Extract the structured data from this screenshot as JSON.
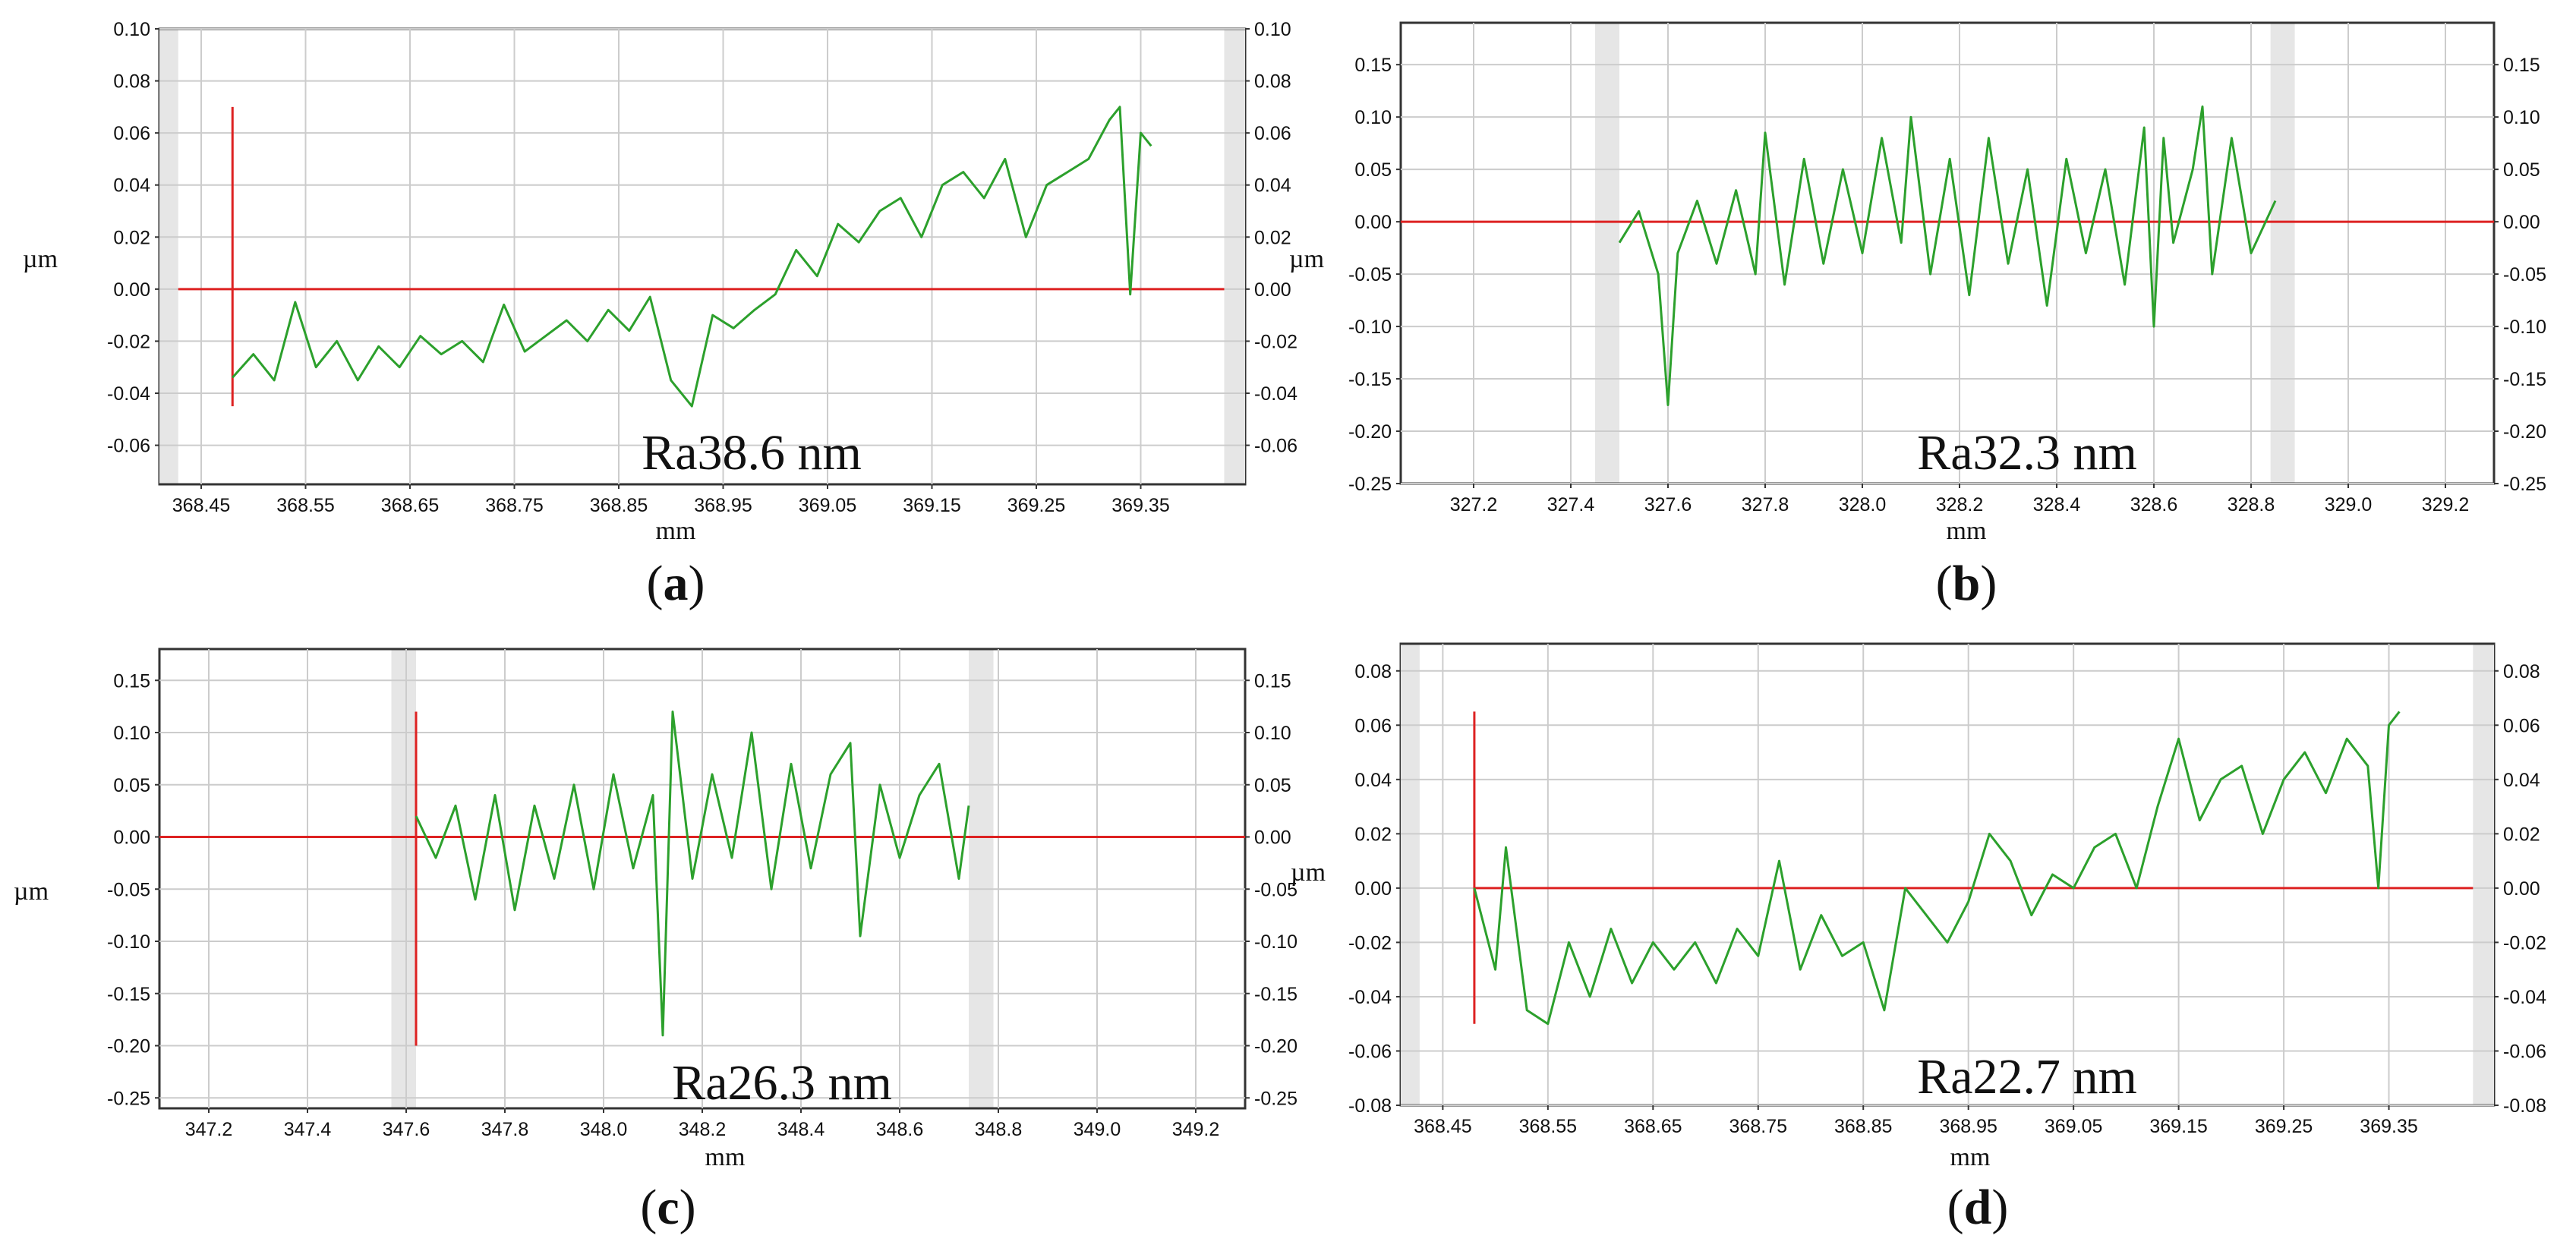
{
  "chart_data": [
    {
      "panel": "a",
      "type": "line",
      "ylabel": "µm",
      "xlabel": "mm",
      "annotation": "Ra38.6 nm",
      "caption_letter": "a",
      "xlim": [
        368.41,
        369.45
      ],
      "ylim": [
        -0.075,
        0.1
      ],
      "left_ticks": [
        0.1,
        0.08,
        0.06,
        0.04,
        0.02,
        0.0,
        -0.02,
        -0.04,
        -0.06
      ],
      "left_tick_labels": [
        "0.10",
        "0.08",
        "0.06",
        "0.04",
        "0.02",
        "0.00",
        "-0.02",
        "-0.04",
        "-0.06"
      ],
      "right_ticks": [
        0.1,
        0.08,
        0.06,
        0.04,
        0.02,
        0.0,
        -0.02,
        -0.04,
        -0.06
      ],
      "right_tick_labels": [
        "0.10",
        "0.08",
        "0.06",
        "0.04",
        "0.02",
        "0.00",
        "-0.02",
        "-0.04",
        "-0.06"
      ],
      "x_ticks": [
        368.45,
        368.55,
        368.65,
        368.75,
        368.85,
        368.95,
        369.05,
        369.15,
        369.25,
        369.35
      ],
      "x_tick_labels": [
        "368.45",
        "368.55",
        "368.65",
        "368.75",
        "368.85",
        "368.95",
        "369.05",
        "369.15",
        "369.25",
        "369.35"
      ],
      "gray_bands": [
        [
          368.41,
          368.428
        ],
        [
          369.43,
          369.45
        ]
      ],
      "red_vline": {
        "x": 368.48,
        "y1": -0.045,
        "y2": 0.07
      },
      "red_hline": {
        "y": 0.0,
        "x1": 368.428,
        "x2": 369.43
      },
      "series": [
        {
          "values_x": [
            368.48,
            368.5,
            368.52,
            368.54,
            368.56,
            368.58,
            368.6,
            368.62,
            368.64,
            368.66,
            368.68,
            368.7,
            368.72,
            368.74,
            368.76,
            368.78,
            368.8,
            368.82,
            368.84,
            368.86,
            368.88,
            368.9,
            368.92,
            368.94,
            368.96,
            368.98,
            369.0,
            369.02,
            369.04,
            369.06,
            369.08,
            369.1,
            369.12,
            369.14,
            369.16,
            369.18,
            369.2,
            369.22,
            369.24,
            369.26,
            369.28,
            369.3,
            369.32,
            369.33,
            369.34,
            369.35,
            369.36
          ],
          "values_y": [
            -0.034,
            -0.025,
            -0.035,
            -0.005,
            -0.03,
            -0.02,
            -0.035,
            -0.022,
            -0.03,
            -0.018,
            -0.025,
            -0.02,
            -0.028,
            -0.006,
            -0.024,
            -0.018,
            -0.012,
            -0.02,
            -0.008,
            -0.016,
            -0.003,
            -0.035,
            -0.045,
            -0.01,
            -0.015,
            -0.008,
            -0.002,
            0.015,
            0.005,
            0.025,
            0.018,
            0.03,
            0.035,
            0.02,
            0.04,
            0.045,
            0.035,
            0.05,
            0.02,
            0.04,
            0.045,
            0.05,
            0.065,
            0.07,
            -0.002,
            0.06,
            0.055
          ]
        }
      ]
    },
    {
      "panel": "b",
      "type": "line",
      "ylabel": "µm",
      "xlabel": "mm",
      "annotation": "Ra32.3 nm",
      "caption_letter": "b",
      "xlim": [
        327.05,
        329.3
      ],
      "ylim": [
        -0.25,
        0.19
      ],
      "left_ticks": [
        0.15,
        0.1,
        0.05,
        0.0,
        -0.05,
        -0.1,
        -0.15,
        -0.2,
        -0.25
      ],
      "left_tick_labels": [
        "0.15",
        "0.10",
        "0.05",
        "0.00",
        "-0.05",
        "-0.10",
        "-0.15",
        "-0.20",
        "-0.25"
      ],
      "right_ticks": [
        0.15,
        0.1,
        0.05,
        0.0,
        -0.05,
        -0.1,
        -0.15,
        -0.2,
        -0.25
      ],
      "right_tick_labels": [
        "0.15",
        "0.10",
        "0.05",
        "0.00",
        "-0.05",
        "-0.10",
        "-0.15",
        "-0.20",
        "-0.25"
      ],
      "x_ticks": [
        327.2,
        327.4,
        327.6,
        327.8,
        328.0,
        328.2,
        328.4,
        328.6,
        328.8,
        329.0,
        329.2
      ],
      "x_tick_labels": [
        "327.2",
        "327.4",
        "327.6",
        "327.8",
        "328.0",
        "328.2",
        "328.4",
        "328.6",
        "328.8",
        "329.0",
        "329.2"
      ],
      "gray_bands": [
        [
          327.45,
          327.5
        ],
        [
          328.84,
          328.89
        ]
      ],
      "red_hline": {
        "y": 0.0,
        "x1": 327.05,
        "x2": 329.3
      },
      "series": [
        {
          "values_x": [
            327.5,
            327.54,
            327.58,
            327.6,
            327.62,
            327.66,
            327.7,
            327.74,
            327.78,
            327.8,
            327.84,
            327.88,
            327.92,
            327.96,
            328.0,
            328.04,
            328.08,
            328.1,
            328.14,
            328.18,
            328.22,
            328.26,
            328.3,
            328.34,
            328.38,
            328.42,
            328.46,
            328.5,
            328.54,
            328.58,
            328.6,
            328.62,
            328.64,
            328.68,
            328.7,
            328.72,
            328.76,
            328.8,
            328.85
          ],
          "values_y": [
            -0.02,
            0.01,
            -0.05,
            -0.175,
            -0.03,
            0.02,
            -0.04,
            0.03,
            -0.05,
            0.085,
            -0.06,
            0.06,
            -0.04,
            0.05,
            -0.03,
            0.08,
            -0.02,
            0.1,
            -0.05,
            0.06,
            -0.07,
            0.08,
            -0.04,
            0.05,
            -0.08,
            0.06,
            -0.03,
            0.05,
            -0.06,
            0.09,
            -0.1,
            0.08,
            -0.02,
            0.05,
            0.11,
            -0.05,
            0.08,
            -0.03,
            0.02
          ]
        }
      ]
    },
    {
      "panel": "c",
      "type": "line",
      "ylabel": "µm",
      "xlabel": "mm",
      "annotation": "Ra26.3 nm",
      "caption_letter": "c",
      "xlim": [
        347.1,
        349.3
      ],
      "ylim": [
        -0.26,
        0.18
      ],
      "left_ticks": [
        0.15,
        0.1,
        0.05,
        0.0,
        -0.05,
        -0.1,
        -0.15,
        -0.2,
        -0.25
      ],
      "left_tick_labels": [
        "0.15",
        "0.10",
        "0.05",
        "0.00",
        "-0.05",
        "-0.10",
        "-0.15",
        "-0.20",
        "-0.25"
      ],
      "right_ticks": [
        0.15,
        0.1,
        0.05,
        0.0,
        -0.05,
        -0.1,
        -0.15,
        -0.2,
        -0.25
      ],
      "right_tick_labels": [
        "0.15",
        "0.10",
        "0.05",
        "0.00",
        "-0.05",
        "-0.10",
        "-0.15",
        "-0.20",
        "-0.25"
      ],
      "x_ticks": [
        347.2,
        347.4,
        347.6,
        347.8,
        348.0,
        348.2,
        348.4,
        348.6,
        348.8,
        349.0,
        349.2
      ],
      "x_tick_labels": [
        "347.2",
        "347.4",
        "347.6",
        "347.8",
        "348.0",
        "348.2",
        "348.4",
        "348.6",
        "348.8",
        "349.0",
        "349.2"
      ],
      "gray_bands": [
        [
          347.57,
          347.62
        ],
        [
          348.74,
          348.79
        ]
      ],
      "red_vline": {
        "x": 347.62,
        "y1": -0.2,
        "y2": 0.12
      },
      "red_hline": {
        "y": 0.0,
        "x1": 347.1,
        "x2": 349.3
      },
      "series": [
        {
          "values_x": [
            347.62,
            347.66,
            347.7,
            347.74,
            347.78,
            347.82,
            347.86,
            347.9,
            347.94,
            347.98,
            348.02,
            348.06,
            348.1,
            348.12,
            348.14,
            348.18,
            348.22,
            348.26,
            348.3,
            348.34,
            348.38,
            348.42,
            348.46,
            348.5,
            348.52,
            348.56,
            348.6,
            348.64,
            348.68,
            348.72,
            348.74
          ],
          "values_y": [
            0.02,
            -0.02,
            0.03,
            -0.06,
            0.04,
            -0.07,
            0.03,
            -0.04,
            0.05,
            -0.05,
            0.06,
            -0.03,
            0.04,
            -0.19,
            0.12,
            -0.04,
            0.06,
            -0.02,
            0.1,
            -0.05,
            0.07,
            -0.03,
            0.06,
            0.09,
            -0.095,
            0.05,
            -0.02,
            0.04,
            0.07,
            -0.04,
            0.03
          ]
        }
      ]
    },
    {
      "panel": "d",
      "type": "line",
      "ylabel": "µm",
      "xlabel": "mm",
      "annotation": "Ra22.7 nm",
      "caption_letter": "d",
      "xlim": [
        368.41,
        369.45
      ],
      "ylim": [
        -0.08,
        0.09
      ],
      "left_ticks": [
        0.08,
        0.06,
        0.04,
        0.02,
        0.0,
        -0.02,
        -0.04,
        -0.06,
        -0.08
      ],
      "left_tick_labels": [
        "0.08",
        "0.06",
        "0.04",
        "0.02",
        "0.00",
        "-0.02",
        "-0.04",
        "-0.06",
        "-0.08"
      ],
      "right_ticks": [
        0.08,
        0.06,
        0.04,
        0.02,
        0.0,
        -0.02,
        -0.04,
        -0.06,
        -0.08
      ],
      "right_tick_labels": [
        "0.08",
        "0.06",
        "0.04",
        "0.02",
        "0.00",
        "-0.02",
        "-0.04",
        "-0.06",
        "-0.08"
      ],
      "x_ticks": [
        368.45,
        368.55,
        368.65,
        368.75,
        368.85,
        368.95,
        369.05,
        369.15,
        369.25,
        369.35
      ],
      "x_tick_labels": [
        "368.45",
        "368.55",
        "368.65",
        "368.75",
        "368.85",
        "368.95",
        "369.05",
        "369.15",
        "369.25",
        "369.35"
      ],
      "gray_bands": [
        [
          368.41,
          368.428
        ],
        [
          369.43,
          369.45
        ]
      ],
      "red_vline": {
        "x": 368.48,
        "y1": -0.05,
        "y2": 0.065
      },
      "red_hline": {
        "y": 0.0,
        "x1": 368.48,
        "x2": 369.43
      },
      "series": [
        {
          "values_x": [
            368.48,
            368.5,
            368.51,
            368.53,
            368.55,
            368.57,
            368.59,
            368.61,
            368.63,
            368.65,
            368.67,
            368.69,
            368.71,
            368.73,
            368.75,
            368.77,
            368.79,
            368.81,
            368.83,
            368.85,
            368.87,
            368.89,
            368.91,
            368.93,
            368.95,
            368.97,
            368.99,
            369.01,
            369.03,
            369.05,
            369.07,
            369.09,
            369.11,
            369.13,
            369.15,
            369.17,
            369.19,
            369.21,
            369.23,
            369.25,
            369.27,
            369.29,
            369.31,
            369.33,
            369.34,
            369.35,
            369.36
          ],
          "values_y": [
            0.0,
            -0.03,
            0.015,
            -0.045,
            -0.05,
            -0.02,
            -0.04,
            -0.015,
            -0.035,
            -0.02,
            -0.03,
            -0.02,
            -0.035,
            -0.015,
            -0.025,
            0.01,
            -0.03,
            -0.01,
            -0.025,
            -0.02,
            -0.045,
            0.0,
            -0.01,
            -0.02,
            -0.005,
            0.02,
            0.01,
            -0.01,
            0.005,
            0.0,
            0.015,
            0.02,
            0.0,
            0.03,
            0.055,
            0.025,
            0.04,
            0.045,
            0.02,
            0.04,
            0.05,
            0.035,
            0.055,
            0.045,
            0.0,
            0.06,
            0.065
          ]
        }
      ]
    }
  ]
}
